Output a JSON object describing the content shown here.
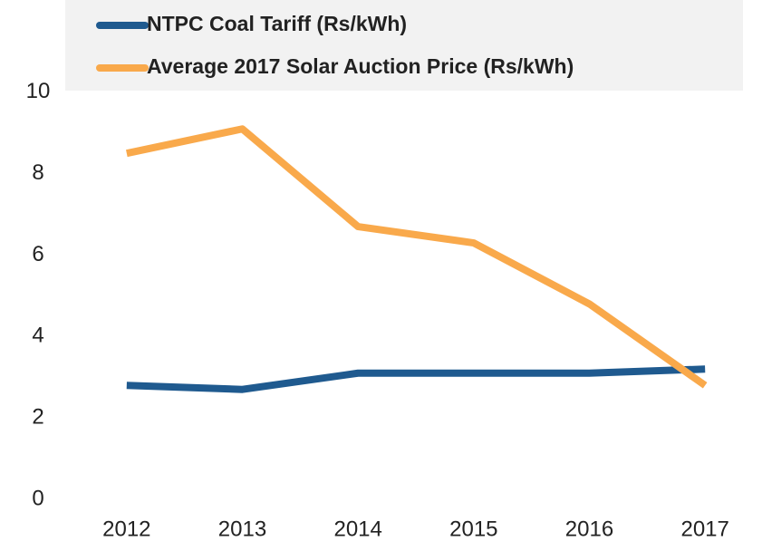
{
  "chart_data": {
    "type": "line",
    "categories": [
      "2012",
      "2013",
      "2014",
      "2015",
      "2016",
      "2017"
    ],
    "series": [
      {
        "name": "NTPC Coal Tariff (Rs/kWh)",
        "color": "#1f5a8f",
        "values": [
          2.8,
          2.7,
          3.1,
          3.1,
          3.1,
          3.2
        ]
      },
      {
        "name": "Average 2017 Solar Auction Price (Rs/kWh)",
        "color": "#f9a94b",
        "values": [
          8.5,
          9.1,
          6.7,
          6.3,
          4.8,
          2.8
        ]
      }
    ],
    "ylim": [
      0,
      12
    ],
    "yticks": [
      0,
      2,
      4,
      6,
      8,
      10
    ],
    "grid": false
  }
}
